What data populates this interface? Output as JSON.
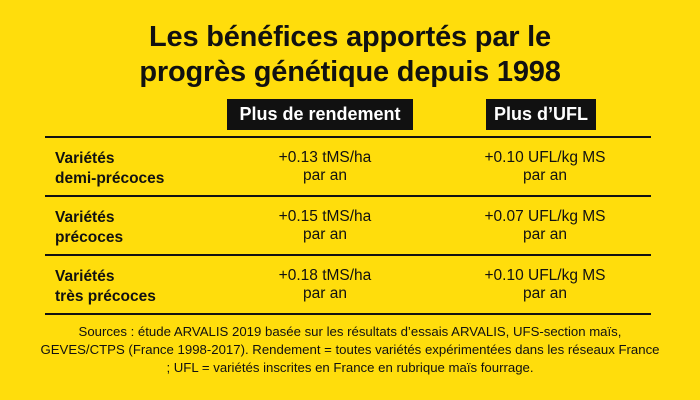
{
  "title": {
    "line1": "Les bénéfices apportés par le",
    "line2": "progrès génétique depuis 1998"
  },
  "columns": {
    "yield": "Plus de rendement",
    "ufl": "Plus d’UFL"
  },
  "rows": [
    {
      "label1": "Variétés",
      "label2": "demi-précoces",
      "yield1": "+0.13 tMS/ha",
      "yield2": "par an",
      "ufl1": "+0.10 UFL/kg MS",
      "ufl2": "par an"
    },
    {
      "label1": "Variétés",
      "label2": "précoces",
      "yield1": "+0.15 tMS/ha",
      "yield2": "par an",
      "ufl1": "+0.07 UFL/kg MS",
      "ufl2": "par an"
    },
    {
      "label1": "Variétés",
      "label2": "très précoces",
      "yield1": "+0.18 tMS/ha",
      "yield2": "par an",
      "ufl1": "+0.10 UFL/kg MS",
      "ufl2": "par an"
    }
  ],
  "sources": "Sources : étude ARVALIS 2019 basée sur les résultats d’essais ARVALIS, UFS-section maïs, GEVES/CTPS (France 1998-2017). Rendement = toutes variétés expérimentées dans les réseaux France ; UFL = variétés inscrites en France en rubrique maïs fourrage.",
  "colors": {
    "background": "#FFDD0C",
    "header_fill": "#111111",
    "header_text": "#FFFFFF",
    "text": "#111111"
  }
}
